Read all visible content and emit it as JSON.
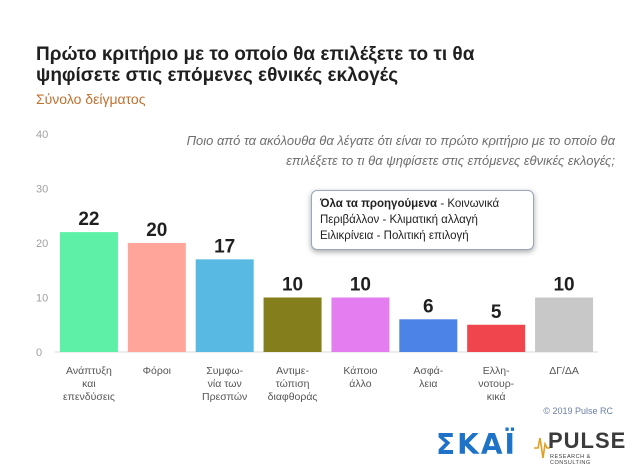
{
  "chart_data": {
    "type": "bar",
    "title": "Πρώτο κριτήριο με το οποίο θα επιλέξετε το τι θα ψηφίσετε στις επόμενες εθνικές εκλογές",
    "subtitle": "Σύνολο δείγματος",
    "question": "Ποιο από τα ακόλουθα θα λέγατε ότι είναι το πρώτο κριτήριο με το οποίο θα επιλέξετε το τι θα ψηφίσετε στις επόμενες εθνικές εκλογές;",
    "categories": [
      [
        "Ανάπτυξη",
        "και",
        "επενδύσεις"
      ],
      [
        "Φόροι"
      ],
      [
        "Συμφω-",
        "νία των",
        "Πρεσπών"
      ],
      [
        "Αντιμε-",
        "τώπιση",
        "διαφθοράς"
      ],
      [
        "Κάποιο",
        "άλλο"
      ],
      [
        "Ασφά-",
        "λεια"
      ],
      [
        "Ελλη-",
        "νοτουρ-",
        "κικά"
      ],
      [
        "ΔΓ/ΔΑ"
      ]
    ],
    "values": [
      22,
      20,
      17,
      10,
      10,
      6,
      5,
      10
    ],
    "colors": [
      "#5ff0a8",
      "#ffa59a",
      "#58b9e2",
      "#857e1c",
      "#e47ef0",
      "#4b83e6",
      "#f0454d",
      "#c8c8c8"
    ],
    "ylim": [
      0,
      40
    ],
    "yticks": [
      0,
      10,
      20,
      30,
      40
    ],
    "grid": false
  },
  "tooltip": {
    "bold": "Όλα τα προηγούμενα",
    "rest": " - Κοινωνικά Περιβάλλον - Κλιματική αλλαγή Ειλικρίνεια - Πολιτική επιλογή"
  },
  "copyright": "© 2019 Pulse RC",
  "logos": {
    "skai": "ΣΚΑΪ",
    "pulse": "PULSE",
    "pulse_tagline": "RESEARCH & CONSULTING"
  }
}
